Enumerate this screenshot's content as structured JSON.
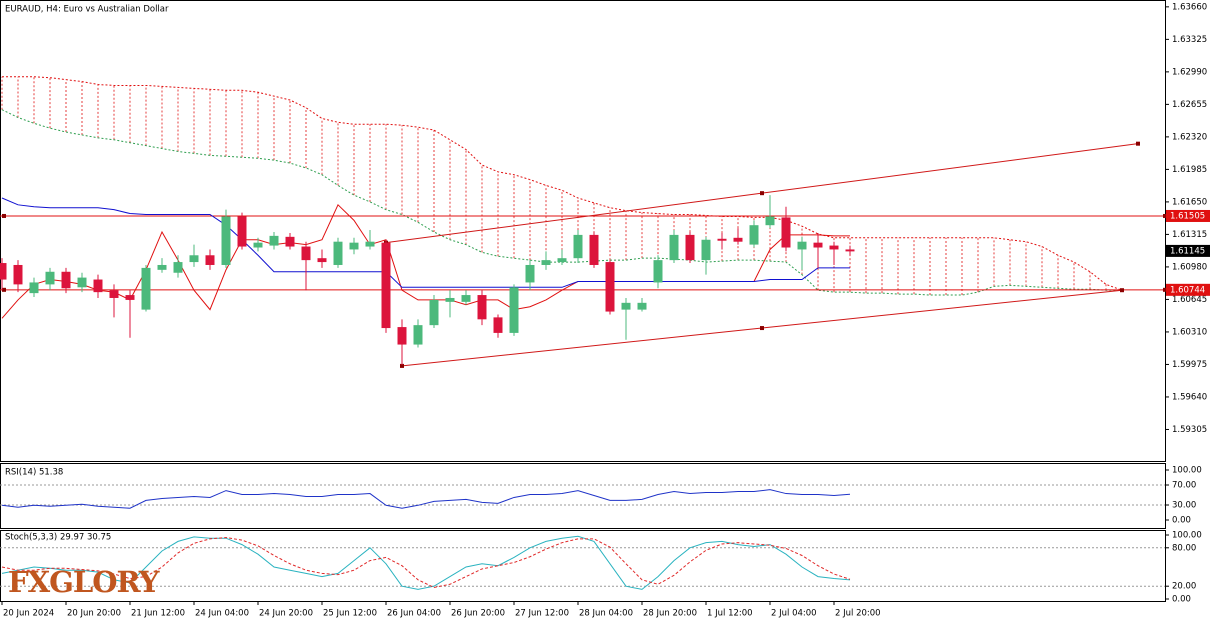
{
  "header": {
    "title": "EURAUD, H4:  Euro vs Australian Dollar"
  },
  "logo": "FXGLORY",
  "chart_data": [
    {
      "type": "candlestick",
      "categories": [
        "20 Jun 2024",
        null,
        null,
        null,
        "20 Jun 20:00",
        null,
        null,
        null,
        "21 Jun 12:00",
        null,
        null,
        null,
        "24 Jun 04:00",
        null,
        null,
        null,
        "24 Jun 20:00",
        null,
        null,
        null,
        "25 Jun 12:00",
        null,
        null,
        null,
        "26 Jun 04:00",
        null,
        null,
        null,
        "26 Jun 20:00",
        null,
        null,
        null,
        "27 Jun 12:00",
        null,
        null,
        null,
        "28 Jun 04:00",
        null,
        null,
        null,
        "28 Jun 20:00",
        null,
        null,
        null,
        "1 Jul 12:00",
        null,
        null,
        null,
        "2 Jul 04:00",
        null,
        null,
        null,
        "2 Jul 20:00",
        null,
        null,
        null,
        null,
        null,
        null,
        null,
        null,
        null,
        null,
        null,
        null,
        null,
        null,
        null,
        null,
        null,
        null
      ],
      "open": [
        1.6102,
        1.61,
        1.6071,
        1.608,
        1.6093,
        1.6077,
        1.6085,
        1.6074,
        1.6069,
        1.6054,
        1.6095,
        1.6092,
        1.6103,
        1.611,
        1.61,
        1.615,
        1.6118,
        1.612,
        1.6129,
        1.6119,
        1.6107,
        1.61,
        1.6116,
        1.6119,
        1.6123,
        1.6036,
        1.6018,
        1.6038,
        1.6062,
        1.6062,
        1.6069,
        1.6046,
        1.603,
        1.6082,
        1.61,
        1.6103,
        1.6107,
        1.6131,
        1.6103,
        1.6054,
        1.6054,
        1.6082,
        1.6105,
        1.6131,
        1.6105,
        1.6127,
        1.6128,
        1.6121,
        1.6141,
        1.6149,
        1.6116,
        1.6123,
        1.612,
        1.6116,
        null,
        null,
        null,
        null,
        null,
        null,
        null,
        null,
        null,
        null,
        null,
        null,
        null,
        null,
        null,
        null,
        null
      ],
      "high": [
        1.6107,
        1.6105,
        1.6087,
        1.6097,
        1.6097,
        1.6092,
        1.609,
        1.608,
        1.6074,
        1.61,
        1.6107,
        1.611,
        1.6121,
        1.6116,
        1.6157,
        1.6154,
        1.6128,
        1.6134,
        1.6133,
        1.6124,
        1.6116,
        1.6128,
        1.6128,
        1.6136,
        1.6126,
        1.6044,
        1.6044,
        1.6069,
        1.6074,
        1.6074,
        1.6074,
        1.6049,
        1.608,
        1.6105,
        1.6114,
        1.6116,
        1.6136,
        1.6134,
        1.6105,
        1.6066,
        1.6066,
        1.611,
        1.6136,
        1.6134,
        1.6129,
        1.6133,
        1.6138,
        1.6146,
        1.6172,
        1.616,
        1.6129,
        1.6133,
        1.6124,
        1.612,
        null,
        null,
        null,
        null,
        null,
        null,
        null,
        null,
        null,
        null,
        null,
        null,
        null,
        null,
        null,
        null,
        null
      ],
      "low": [
        1.6074,
        1.6072,
        1.6067,
        1.6074,
        1.6071,
        1.6072,
        1.6066,
        1.6046,
        1.6025,
        1.6052,
        1.6092,
        1.6087,
        1.6098,
        1.6095,
        1.6097,
        1.6116,
        1.6114,
        1.6116,
        1.6116,
        1.6074,
        1.6097,
        1.6097,
        1.6111,
        1.6116,
        1.603,
        1.5997,
        1.6015,
        1.6035,
        1.6046,
        1.6059,
        1.6038,
        1.6025,
        1.6027,
        1.6074,
        1.6095,
        1.61,
        1.6102,
        1.6097,
        1.6049,
        1.6023,
        1.6052,
        1.6076,
        1.6102,
        1.6102,
        1.609,
        1.6116,
        1.6121,
        1.6118,
        1.6138,
        1.6114,
        1.6095,
        1.6097,
        1.61,
        1.611,
        null,
        null,
        null,
        null,
        null,
        null,
        null,
        null,
        null,
        null,
        null,
        null,
        null,
        null,
        null,
        null,
        null
      ],
      "close": [
        1.6085,
        1.608,
        1.6082,
        1.6093,
        1.6076,
        1.6087,
        1.6072,
        1.6066,
        1.6064,
        1.6097,
        1.61,
        1.6103,
        1.611,
        1.61,
        1.615,
        1.6119,
        1.6123,
        1.613,
        1.6119,
        1.6105,
        1.6103,
        1.6124,
        1.6123,
        1.6124,
        1.6035,
        1.6018,
        1.6038,
        1.6064,
        1.6066,
        1.6069,
        1.6044,
        1.603,
        1.6077,
        1.61,
        1.6105,
        1.6107,
        1.6131,
        1.61,
        1.6052,
        1.6061,
        1.6061,
        1.6105,
        1.6131,
        1.6105,
        1.6126,
        1.6125,
        1.6124,
        1.6141,
        1.615,
        1.6118,
        1.6124,
        1.6118,
        1.6116,
        1.6114,
        null,
        null,
        null,
        null,
        null,
        null,
        null,
        null,
        null,
        null,
        null,
        null,
        null,
        null,
        null,
        null,
        null
      ],
      "up_color": "#4cb97c",
      "down_color": "#dc143c",
      "lines": [
        {
          "color": "#e01010",
          "values": [
            1.6045,
            1.6064,
            1.608,
            1.6085,
            1.6083,
            1.608,
            1.6074,
            1.6072,
            1.6064,
            1.6095,
            1.6134,
            1.6105,
            1.6074,
            1.6054,
            1.6095,
            1.6126,
            1.6126,
            1.6121,
            1.6123,
            1.6121,
            1.6126,
            1.6162,
            1.6146,
            1.6121,
            1.6126,
            1.6074,
            1.6064,
            1.6064,
            1.6064,
            1.6059,
            1.6064,
            1.6064,
            1.6054,
            1.6057,
            1.6064,
            1.6074,
            1.6083,
            1.6083,
            1.6083,
            1.6083,
            1.6083,
            1.6083,
            1.6083,
            1.6083,
            1.6083,
            1.6083,
            1.6083,
            1.6083,
            1.6116,
            1.6131,
            1.6131,
            1.6131,
            1.613,
            1.613,
            null,
            null,
            null,
            null,
            null,
            null,
            null,
            null,
            null,
            null,
            null,
            null,
            null,
            null,
            null,
            null,
            null
          ]
        },
        {
          "color": "#1010d0",
          "values": [
            1.6169,
            1.6162,
            1.616,
            1.6159,
            1.6159,
            1.6159,
            1.6159,
            1.6157,
            1.6153,
            1.6152,
            1.6152,
            1.6152,
            1.6152,
            1.6152,
            1.6141,
            1.6126,
            1.611,
            1.6093,
            1.6093,
            1.6093,
            1.6093,
            1.6093,
            1.6093,
            1.6093,
            1.6093,
            1.6077,
            1.6077,
            1.6077,
            1.6077,
            1.6077,
            1.6077,
            1.6077,
            1.6077,
            1.6077,
            1.6077,
            1.6077,
            1.6083,
            1.6083,
            1.6083,
            1.6083,
            1.6083,
            1.6083,
            1.6083,
            1.6083,
            1.6083,
            1.6083,
            1.6083,
            1.6083,
            1.6085,
            1.6085,
            1.6085,
            1.6097,
            1.6097,
            1.6097,
            null,
            null,
            null,
            null,
            null,
            null,
            null,
            null,
            null,
            null,
            null,
            null,
            null,
            null,
            null,
            null,
            null
          ]
        }
      ],
      "cloud": {
        "color_a": "#2e9e4f",
        "color_b": "#e01010",
        "span_a": [
          1.626,
          1.6252,
          1.6246,
          1.6241,
          1.6237,
          1.6234,
          1.6231,
          1.6229,
          1.6226,
          1.6223,
          1.622,
          1.6217,
          1.6215,
          1.6213,
          1.6212,
          1.6211,
          1.621,
          1.6208,
          1.6205,
          1.62,
          1.6193,
          1.6182,
          1.6172,
          1.6165,
          1.6157,
          1.6152,
          1.6144,
          1.6134,
          1.6126,
          1.6121,
          1.6113,
          1.6109,
          1.6107,
          1.6105,
          1.6103,
          1.6103,
          1.6103,
          1.6104,
          1.6105,
          1.6105,
          1.6107,
          1.6107,
          1.6106,
          1.6105,
          1.6103,
          1.6104,
          1.6105,
          1.6105,
          1.6104,
          1.6103,
          1.609,
          1.6074,
          1.6072,
          1.6072,
          1.6071,
          1.6071,
          1.607,
          1.607,
          1.6069,
          1.6069,
          1.6069,
          1.6072,
          1.6078,
          1.6079,
          1.6078,
          1.6077,
          1.6076,
          1.6075,
          1.6075,
          1.6074,
          1.6074
        ],
        "span_b": [
          1.6294,
          1.6294,
          1.6294,
          1.6293,
          1.6291,
          1.6289,
          1.6286,
          1.6285,
          1.6285,
          1.6285,
          1.6284,
          1.6283,
          1.6282,
          1.6281,
          1.628,
          1.628,
          1.6278,
          1.6274,
          1.627,
          1.6262,
          1.6251,
          1.6247,
          1.6245,
          1.6245,
          1.6245,
          1.6244,
          1.6242,
          1.6239,
          1.6229,
          1.6219,
          1.6203,
          1.6196,
          1.6193,
          1.6188,
          1.6182,
          1.6177,
          1.6169,
          1.6164,
          1.6159,
          1.6156,
          1.6154,
          1.6153,
          1.6152,
          1.6152,
          1.6151,
          1.615,
          1.615,
          1.6149,
          1.6149,
          1.6146,
          1.614,
          1.6132,
          1.6128,
          1.6128,
          1.6128,
          1.6128,
          1.6128,
          1.6128,
          1.6128,
          1.6128,
          1.6128,
          1.6128,
          1.6128,
          1.6126,
          1.6124,
          1.6119,
          1.611,
          1.6103,
          1.6093,
          1.608,
          1.6074
        ]
      },
      "hlines": [
        1.61505,
        1.60744
      ],
      "hline_color": "#e01010",
      "last_price": 1.61145,
      "trendlines": [
        {
          "x": [
            24,
            47.5,
            71
          ],
          "y": [
            1.6123,
            1.6174,
            1.6225
          ]
        },
        {
          "x": [
            25,
            47.5,
            70
          ],
          "y": [
            1.5996,
            1.6035,
            1.6074
          ]
        }
      ],
      "trend_color": "#d01818",
      "ylim": [
        1.5898,
        1.6371
      ],
      "yticks": [
        {
          "value": 1.6366,
          "label": "1.63660"
        },
        1.63325,
        {
          "value": 1.6299,
          "label": "1.62990"
        },
        1.62655,
        {
          "value": 1.6232,
          "label": "1.62320"
        },
        1.61985,
        {
          "value": 1.6165,
          "label": "1.61650"
        },
        1.61315,
        {
          "value": 1.6098,
          "label": "1.60980"
        },
        1.60645,
        {
          "value": 1.6031,
          "label": "1.60310"
        },
        1.59975,
        {
          "value": 1.5964,
          "label": "1.59640"
        },
        1.59305
      ]
    },
    {
      "type": "line",
      "title": "RSI(14) 51.38",
      "series": [
        {
          "color": "#1f33c8",
          "values": [
            29.4,
            25.5,
            29.4,
            27.5,
            29.4,
            31.4,
            27.5,
            25.5,
            23.5,
            39.2,
            43.1,
            45.1,
            47.1,
            45.1,
            58.8,
            51.0,
            51.0,
            52.9,
            51.0,
            47.1,
            47.1,
            51.0,
            51.0,
            52.9,
            29.4,
            23.5,
            29.4,
            37.3,
            39.2,
            41.2,
            35.3,
            33.3,
            45.1,
            51.0,
            51.0,
            52.9,
            58.8,
            49.0,
            39.2,
            39.2,
            41.2,
            51.0,
            56.9,
            52.9,
            54.9,
            54.9,
            56.9,
            56.9,
            60.8,
            52.9,
            51.0,
            51.0,
            49.0,
            51.38
          ]
        }
      ],
      "ylim": [
        0,
        100
      ],
      "yticks": [
        {
          "value": 100,
          "label": "100.00"
        },
        {
          "value": 70,
          "label": "70.00"
        },
        {
          "value": 30,
          "label": "30.00"
        },
        {
          "value": 0,
          "label": "0.00"
        }
      ],
      "levels": [
        70,
        30
      ]
    },
    {
      "type": "line",
      "title": "Stoch(5,3,3) 29.97 30.75",
      "series": [
        {
          "color": "#2ab3c0",
          "values": [
            40,
            45,
            50,
            48,
            45,
            45,
            42,
            30,
            25,
            50,
            75,
            90,
            97,
            95,
            95,
            85,
            70,
            50,
            45,
            40,
            35,
            40,
            60,
            80,
            55,
            20,
            15,
            20,
            35,
            50,
            55,
            52,
            65,
            80,
            90,
            95,
            98,
            90,
            55,
            20,
            15,
            35,
            60,
            80,
            88,
            90,
            85,
            82,
            85,
            70,
            50,
            35,
            32,
            29.97
          ]
        },
        {
          "color": "#e02828",
          "dashed": true,
          "values": [
            50,
            45,
            45,
            48,
            48,
            46,
            44,
            39,
            32,
            35,
            50,
            72,
            87,
            94,
            96,
            92,
            83,
            68,
            55,
            45,
            40,
            38,
            45,
            60,
            65,
            52,
            30,
            18,
            23,
            35,
            47,
            52,
            57,
            66,
            78,
            88,
            94,
            94,
            81,
            55,
            30,
            23,
            37,
            58,
            76,
            86,
            88,
            86,
            84,
            79,
            68,
            52,
            39,
            30.75
          ]
        }
      ],
      "ylim": [
        0,
        100
      ],
      "yticks": [
        {
          "value": 100,
          "label": "100.00"
        },
        {
          "value": 80,
          "label": "80.00"
        },
        {
          "value": 20,
          "label": "20.00"
        },
        {
          "value": 0,
          "label": "0.00"
        }
      ],
      "levels": [
        80,
        20
      ]
    }
  ]
}
